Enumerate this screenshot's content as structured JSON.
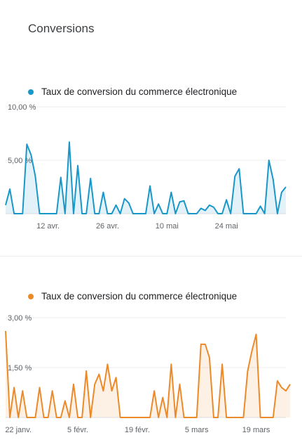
{
  "section": {
    "title": "Conversions"
  },
  "colors": {
    "blue": "#1a97c9",
    "orange": "#ec8a2a",
    "grid": "#ececec"
  },
  "chart_data": [
    {
      "type": "area",
      "legend": "Taux de conversion du commerce électronique",
      "ylim": [
        0,
        10
      ],
      "yticks": [
        {
          "value": 10,
          "label": "10,00 %"
        },
        {
          "value": 5,
          "label": "5,00 %"
        }
      ],
      "xticks": [
        {
          "x": 10,
          "label": "12 avr."
        },
        {
          "x": 24,
          "label": "26 avr."
        },
        {
          "x": 38,
          "label": "10 mai"
        },
        {
          "x": 52,
          "label": "24 mai"
        }
      ],
      "xmax": 66,
      "values": [
        0.8,
        2.3,
        0,
        0,
        0,
        6.5,
        5.5,
        3.5,
        0,
        0,
        0,
        0,
        0,
        3.4,
        0,
        6.7,
        0,
        4.5,
        0,
        0,
        3.3,
        0,
        0,
        2.0,
        0,
        0,
        0.8,
        0,
        1.4,
        1.0,
        0,
        0,
        0,
        0,
        2.6,
        0,
        0.9,
        0,
        0,
        2.0,
        0,
        1.1,
        1.2,
        0,
        0,
        0,
        0.5,
        0.3,
        0.8,
        0.6,
        0,
        0,
        1.3,
        0,
        3.5,
        4.2,
        0,
        0,
        0,
        0,
        0.7,
        0,
        5.0,
        3.2,
        0,
        2.0,
        2.5
      ],
      "grid": true
    },
    {
      "type": "area",
      "legend": "Taux de conversion du commerce électronique",
      "ylim": [
        0,
        3
      ],
      "yticks": [
        {
          "value": 3,
          "label": "3,00 %"
        },
        {
          "value": 1.5,
          "label": "1,50 %"
        }
      ],
      "xticks": [
        {
          "x": 3,
          "label": "22 janv."
        },
        {
          "x": 17,
          "label": "5 févr."
        },
        {
          "x": 31,
          "label": "19 févr."
        },
        {
          "x": 45,
          "label": "5 mars"
        },
        {
          "x": 59,
          "label": "19 mars"
        }
      ],
      "xmax": 66,
      "values": [
        2.6,
        0,
        0.9,
        0,
        0.8,
        0,
        0,
        0,
        0.9,
        0,
        0,
        0.8,
        0,
        0,
        0.5,
        0,
        1.0,
        0,
        0,
        1.4,
        0,
        1.0,
        1.3,
        0.8,
        1.6,
        0.8,
        1.2,
        0,
        0,
        0,
        0,
        0,
        0,
        0,
        0,
        0.8,
        0,
        0.6,
        0,
        1.6,
        0,
        1.0,
        0,
        0,
        0,
        0,
        2.2,
        2.2,
        1.8,
        0,
        0,
        1.6,
        0,
        0,
        0,
        0,
        0,
        1.4,
        2.0,
        2.5,
        0,
        0,
        0,
        0,
        1.1,
        0.9,
        0.8,
        1.0
      ],
      "grid": true
    }
  ]
}
